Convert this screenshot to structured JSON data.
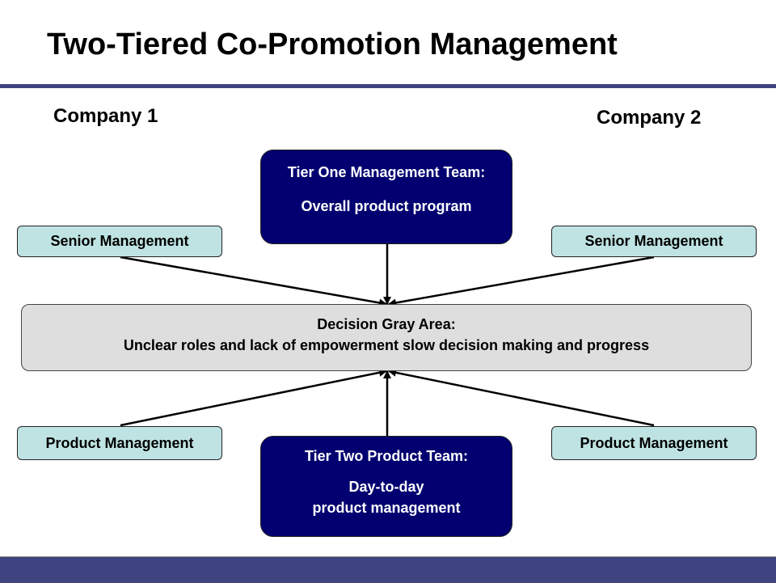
{
  "title": "Two-Tiered Co-Promotion Management",
  "companies": {
    "left": "Company 1",
    "right": "Company 2"
  },
  "tier_one": {
    "heading": "Tier One Management Team:",
    "description": "Overall product program"
  },
  "senior_management": {
    "left": "Senior Management",
    "right": "Senior Management"
  },
  "gray_area": {
    "heading": "Decision Gray Area:",
    "description": "Unclear roles and lack of empowerment slow decision making and progress"
  },
  "product_management": {
    "left": "Product Management",
    "right": "Product Management"
  },
  "tier_two": {
    "heading": "Tier Two Product Team:",
    "line1": "Day-to-day",
    "line2": "product management"
  },
  "colors": {
    "title_rule": "#3f4480",
    "tier_box": "#020070",
    "light_box": "#bfe3e3",
    "gray_box": "#dedede"
  }
}
